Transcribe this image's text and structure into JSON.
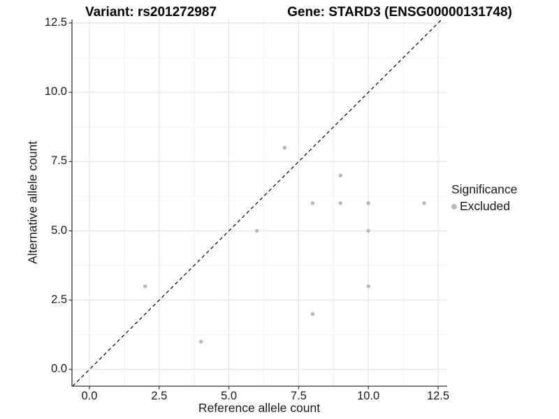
{
  "chart_data": {
    "type": "scatter",
    "titles": {
      "left": "Variant: rs201272987",
      "right": "Gene: STARD3 (ENSG00000131748)"
    },
    "xlabel": "Reference allele count",
    "ylabel": "Alternative allele count",
    "x_ticks": {
      "values": [
        0,
        2.5,
        5,
        7.5,
        10,
        12.5
      ],
      "labels": [
        "0.0",
        "2.5",
        "5.0",
        "7.5",
        "10.0",
        "12.5"
      ]
    },
    "y_ticks": {
      "values": [
        0,
        2.5,
        5,
        7.5,
        10,
        12.5
      ],
      "labels": [
        "0.0",
        "2.5",
        "5.0",
        "7.5",
        "10.0",
        "12.5"
      ]
    },
    "xlim": [
      -0.63,
      12.83
    ],
    "ylim": [
      -0.61,
      12.63
    ],
    "grid": {
      "major": true,
      "minor": true
    },
    "reference_line": {
      "type": "identity",
      "slope": 1,
      "intercept": 0,
      "style": "dashed",
      "color": "#000000"
    },
    "series": [
      {
        "name": "Excluded",
        "marker_color": "#b8b8b8",
        "points": [
          {
            "x": 2,
            "y": 3
          },
          {
            "x": 4,
            "y": 1
          },
          {
            "x": 6,
            "y": 5
          },
          {
            "x": 7,
            "y": 8
          },
          {
            "x": 8,
            "y": 2
          },
          {
            "x": 8,
            "y": 6
          },
          {
            "x": 9,
            "y": 6
          },
          {
            "x": 9,
            "y": 7
          },
          {
            "x": 10,
            "y": 3
          },
          {
            "x": 10,
            "y": 5
          },
          {
            "x": 10,
            "y": 6
          },
          {
            "x": 12,
            "y": 6
          }
        ]
      }
    ],
    "legend": {
      "title": "Significance",
      "position": "right",
      "entries": [
        {
          "label": "Excluded",
          "marker_color": "#b8b8b8"
        }
      ]
    },
    "style_colors": {
      "background": "#ffffff",
      "grid_major": "#e4e4e4",
      "grid_minor": "#f0f0f0",
      "axis_line": "#333333",
      "point": "#b8b8b8",
      "text": "#1a1a1a"
    }
  }
}
